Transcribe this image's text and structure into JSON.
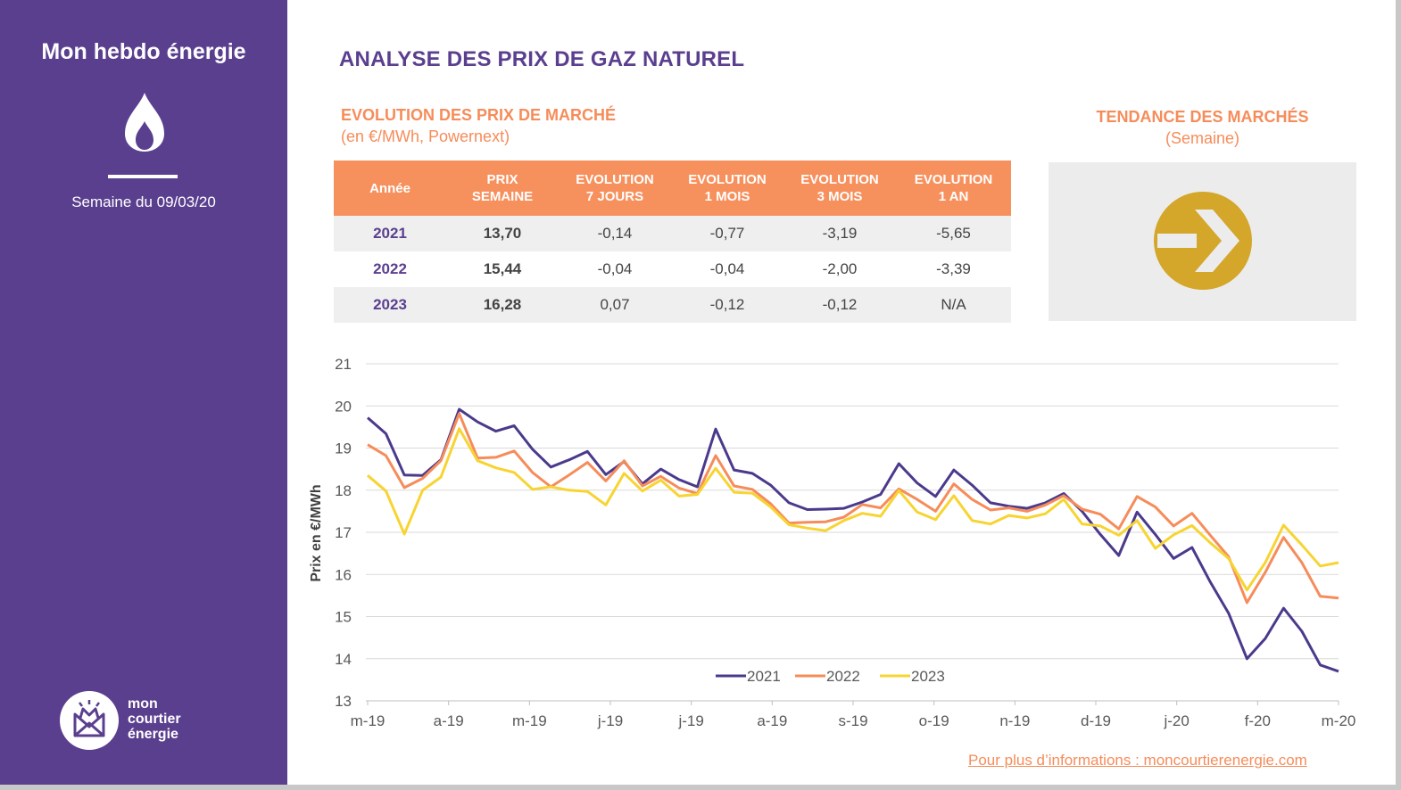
{
  "sidebar": {
    "title": "Mon hebdo énergie",
    "week_label": "Semaine du 09/03/20",
    "logo_lines": [
      "mon",
      "courtier",
      "énergie"
    ],
    "icon": "flame-icon",
    "background_color": "#5b3f8f"
  },
  "header": {
    "main_title": "ANALYSE DES PRIX DE GAZ NATUREL",
    "section_title": "EVOLUTION DES PRIX DE MARCHÉ",
    "section_note": "(en €/MWh, Powernext)"
  },
  "trend": {
    "title": "TENDANCE DES MARCHÉS",
    "note": "(Semaine)",
    "icon": "arrow-right-icon",
    "direction": "stable",
    "color": "#d4a62a"
  },
  "table": {
    "headers": [
      "Année",
      "PRIX\nSEMAINE",
      "EVOLUTION\n7 JOURS",
      "EVOLUTION\n1 MOIS",
      "EVOLUTION\n3 MOIS",
      "EVOLUTION\n1 AN"
    ],
    "rows": [
      [
        "2021",
        "13,70",
        "-0,14",
        "-0,77",
        "-3,19",
        "-5,65"
      ],
      [
        "2022",
        "15,44",
        "-0,04",
        "-0,04",
        "-2,00",
        "-3,39"
      ],
      [
        "2023",
        "16,28",
        "0,07",
        "-0,12",
        "-0,12",
        "N/A"
      ]
    ]
  },
  "footer": {
    "link_text": "Pour plus d’informations : moncourtierenergie.com"
  },
  "colors": {
    "purple": "#5b3f8f",
    "orange": "#f68c5a",
    "yellow": "#f7d432",
    "navy_line": "#4b3a8c"
  },
  "chart_data": {
    "type": "line",
    "ylabel": "Prix en €/MWh",
    "ylim": [
      13,
      21
    ],
    "yticks": [
      13,
      14,
      15,
      16,
      17,
      18,
      19,
      20,
      21
    ],
    "grid": true,
    "legend_position": "bottom-center",
    "x_tick_labels": [
      "m-19",
      "a-19",
      "m-19",
      "j-19",
      "j-19",
      "a-19",
      "s-19",
      "o-19",
      "n-19",
      "d-19",
      "j-20",
      "f-20",
      "m-20"
    ],
    "series": [
      {
        "name": "2021",
        "color": "#4b3a8c",
        "values": [
          19.72,
          19.34,
          18.36,
          18.35,
          18.72,
          19.92,
          19.62,
          19.4,
          19.53,
          18.97,
          18.55,
          18.72,
          18.92,
          18.37,
          18.68,
          18.15,
          18.5,
          18.25,
          18.08,
          19.45,
          18.48,
          18.4,
          18.12,
          17.7,
          17.54,
          17.55,
          17.57,
          17.72,
          17.9,
          18.63,
          18.17,
          17.85,
          18.48,
          18.12,
          17.7,
          17.62,
          17.57,
          17.7,
          17.92,
          17.5,
          16.95,
          16.45,
          17.48,
          16.95,
          16.38,
          16.64,
          15.82,
          15.08,
          14.0,
          14.48,
          15.2,
          14.65,
          13.85,
          13.7
        ]
      },
      {
        "name": "2022",
        "color": "#f68c5a",
        "values": [
          19.08,
          18.82,
          18.06,
          18.28,
          18.7,
          19.82,
          18.76,
          18.78,
          18.93,
          18.42,
          18.08,
          18.36,
          18.66,
          18.22,
          18.7,
          18.1,
          18.33,
          18.05,
          17.92,
          18.82,
          18.1,
          18.02,
          17.68,
          17.22,
          17.24,
          17.25,
          17.36,
          17.66,
          17.58,
          18.03,
          17.78,
          17.5,
          18.15,
          17.78,
          17.53,
          17.58,
          17.5,
          17.65,
          17.87,
          17.55,
          17.43,
          17.08,
          17.85,
          17.6,
          17.15,
          17.45,
          16.93,
          16.42,
          15.33,
          16.05,
          16.88,
          16.28,
          15.48,
          15.44
        ]
      },
      {
        "name": "2023",
        "color": "#f7d432",
        "values": [
          18.35,
          17.98,
          16.96,
          18.0,
          18.31,
          19.46,
          18.7,
          18.53,
          18.42,
          18.02,
          18.08,
          18.0,
          17.97,
          17.65,
          18.4,
          17.98,
          18.24,
          17.86,
          17.9,
          18.52,
          17.95,
          17.93,
          17.6,
          17.18,
          17.1,
          17.04,
          17.28,
          17.45,
          17.38,
          17.99,
          17.48,
          17.3,
          17.87,
          17.28,
          17.2,
          17.4,
          17.34,
          17.44,
          17.78,
          17.2,
          17.15,
          16.93,
          17.28,
          16.62,
          16.94,
          17.16,
          16.75,
          16.38,
          15.63,
          16.28,
          17.17,
          16.7,
          16.2,
          16.28
        ]
      }
    ]
  }
}
